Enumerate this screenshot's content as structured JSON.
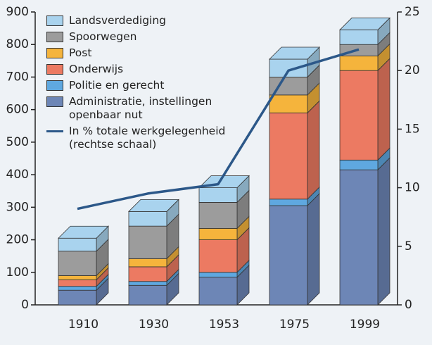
{
  "chart_data": {
    "type": "stacked-bar-3d",
    "categories": [
      "1910",
      "1930",
      "1953",
      "1975",
      "1999"
    ],
    "series": [
      {
        "name": "Landsverdediging",
        "color": "#a9d3ee",
        "values": [
          40,
          45,
          45,
          55,
          45
        ]
      },
      {
        "name": "Spoorwegen",
        "color": "#9c9c9c",
        "values": [
          75,
          100,
          80,
          55,
          35
        ]
      },
      {
        "name": "Post",
        "color": "#f5b43c",
        "values": [
          13,
          25,
          35,
          55,
          45
        ]
      },
      {
        "name": "Onderwijs",
        "color": "#ec7a62",
        "values": [
          20,
          45,
          100,
          265,
          275
        ]
      },
      {
        "name": "Politie en gerecht",
        "color": "#5fa8e0",
        "values": [
          12,
          12,
          15,
          20,
          30
        ]
      },
      {
        "name": "Administratie, instellingen openbaar nut",
        "color": "#6d86b6",
        "values": [
          45,
          60,
          85,
          305,
          415
        ]
      },
      {
        "name": "In % totale werkgelegenheid (rechtse schaal)",
        "color": "#2c5889",
        "type": "line",
        "axis": "y2",
        "values": [
          8.2,
          9.5,
          10.3,
          20,
          21.8
        ]
      }
    ],
    "ylim": [
      0,
      900
    ],
    "yticks": [
      0,
      100,
      200,
      300,
      400,
      500,
      600,
      700,
      800,
      900
    ],
    "y2lim": [
      0,
      25
    ],
    "y2ticks": [
      0,
      5,
      10,
      15,
      20,
      25
    ]
  }
}
